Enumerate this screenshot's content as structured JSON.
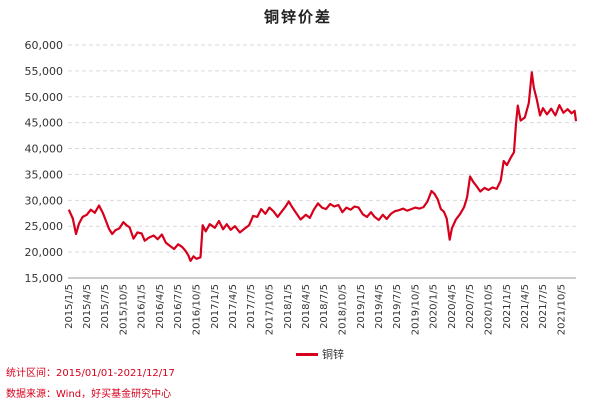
{
  "chart_data": {
    "type": "line",
    "title": "铜锌价差",
    "ylim": [
      15000,
      60000
    ],
    "y_ticks": [
      "15,000",
      "20,000",
      "25,000",
      "30,000",
      "35,000",
      "40,000",
      "45,000",
      "50,000",
      "55,000",
      "60,000"
    ],
    "x_range": [
      "2015-01-01",
      "2021-12-17"
    ],
    "x_ticks": [
      "2015/1/5",
      "2015/4/5",
      "2015/7/5",
      "2015/10/5",
      "2016/1/5",
      "2016/4/5",
      "2016/7/5",
      "2016/10/5",
      "2017/1/5",
      "2017/4/5",
      "2017/7/5",
      "2017/10/5",
      "2018/1/5",
      "2018/4/5",
      "2018/7/5",
      "2018/10/5",
      "2019/1/5",
      "2019/4/5",
      "2019/7/5",
      "2019/10/5",
      "2020/1/5",
      "2020/4/5",
      "2020/7/5",
      "2020/10/5",
      "2021/1/5",
      "2021/4/5",
      "2021/7/5",
      "2021/10/5"
    ],
    "grid": "horizontal dashed",
    "legend_position": "bottom",
    "color": "#d6001c",
    "series": [
      {
        "name": "铜锌",
        "points": [
          [
            "2015-01-05",
            28200
          ],
          [
            "2015-01-25",
            26500
          ],
          [
            "2015-02-10",
            23500
          ],
          [
            "2015-02-25",
            25500
          ],
          [
            "2015-03-15",
            26800
          ],
          [
            "2015-04-05",
            27200
          ],
          [
            "2015-04-25",
            28200
          ],
          [
            "2015-05-15",
            27600
          ],
          [
            "2015-06-05",
            29000
          ],
          [
            "2015-06-25",
            27500
          ],
          [
            "2015-07-10",
            26000
          ],
          [
            "2015-07-25",
            24500
          ],
          [
            "2015-08-10",
            23500
          ],
          [
            "2015-08-25",
            24200
          ],
          [
            "2015-09-15",
            24600
          ],
          [
            "2015-10-05",
            25800
          ],
          [
            "2015-10-20",
            25200
          ],
          [
            "2015-11-05",
            24800
          ],
          [
            "2015-11-25",
            22600
          ],
          [
            "2015-12-15",
            23800
          ],
          [
            "2016-01-05",
            23600
          ],
          [
            "2016-01-20",
            22200
          ],
          [
            "2016-02-10",
            22800
          ],
          [
            "2016-03-05",
            23200
          ],
          [
            "2016-03-25",
            22500
          ],
          [
            "2016-04-15",
            23400
          ],
          [
            "2016-05-05",
            21800
          ],
          [
            "2016-05-25",
            21200
          ],
          [
            "2016-06-15",
            20600
          ],
          [
            "2016-07-05",
            21500
          ],
          [
            "2016-07-25",
            21000
          ],
          [
            "2016-08-10",
            20300
          ],
          [
            "2016-08-25",
            19400
          ],
          [
            "2016-09-05",
            18300
          ],
          [
            "2016-09-20",
            19200
          ],
          [
            "2016-10-05",
            18700
          ],
          [
            "2016-10-25",
            19000
          ],
          [
            "2016-11-05",
            25200
          ],
          [
            "2016-11-20",
            24000
          ],
          [
            "2016-12-10",
            25400
          ],
          [
            "2017-01-05",
            24700
          ],
          [
            "2017-01-25",
            26000
          ],
          [
            "2017-02-15",
            24400
          ],
          [
            "2017-03-05",
            25400
          ],
          [
            "2017-03-25",
            24300
          ],
          [
            "2017-04-15",
            25000
          ],
          [
            "2017-05-10",
            23800
          ],
          [
            "2017-06-05",
            24600
          ],
          [
            "2017-06-25",
            25200
          ],
          [
            "2017-07-15",
            27000
          ],
          [
            "2017-08-05",
            26800
          ],
          [
            "2017-08-25",
            28300
          ],
          [
            "2017-09-15",
            27400
          ],
          [
            "2017-10-05",
            28600
          ],
          [
            "2017-10-25",
            27900
          ],
          [
            "2017-11-15",
            26800
          ],
          [
            "2017-12-05",
            27800
          ],
          [
            "2017-12-25",
            28800
          ],
          [
            "2018-01-10",
            29800
          ],
          [
            "2018-01-25",
            28800
          ],
          [
            "2018-02-15",
            27600
          ],
          [
            "2018-03-10",
            26300
          ],
          [
            "2018-04-05",
            27200
          ],
          [
            "2018-04-25",
            26600
          ],
          [
            "2018-05-15",
            28200
          ],
          [
            "2018-06-05",
            29400
          ],
          [
            "2018-06-25",
            28600
          ],
          [
            "2018-07-15",
            28300
          ],
          [
            "2018-08-05",
            29300
          ],
          [
            "2018-08-25",
            28800
          ],
          [
            "2018-09-15",
            29100
          ],
          [
            "2018-10-05",
            27700
          ],
          [
            "2018-10-25",
            28600
          ],
          [
            "2018-11-15",
            28200
          ],
          [
            "2018-12-05",
            28800
          ],
          [
            "2018-12-25",
            28600
          ],
          [
            "2019-01-15",
            27300
          ],
          [
            "2019-02-05",
            26800
          ],
          [
            "2019-02-25",
            27700
          ],
          [
            "2019-03-15",
            26800
          ],
          [
            "2019-04-05",
            26200
          ],
          [
            "2019-04-25",
            27200
          ],
          [
            "2019-05-15",
            26400
          ],
          [
            "2019-06-05",
            27400
          ],
          [
            "2019-06-25",
            27900
          ],
          [
            "2019-07-15",
            28100
          ],
          [
            "2019-08-05",
            28400
          ],
          [
            "2019-08-25",
            28000
          ],
          [
            "2019-09-15",
            28300
          ],
          [
            "2019-10-05",
            28600
          ],
          [
            "2019-10-25",
            28400
          ],
          [
            "2019-11-15",
            28700
          ],
          [
            "2019-12-05",
            29800
          ],
          [
            "2019-12-25",
            31800
          ],
          [
            "2020-01-10",
            31200
          ],
          [
            "2020-01-25",
            30200
          ],
          [
            "2020-02-10",
            28300
          ],
          [
            "2020-02-25",
            27800
          ],
          [
            "2020-03-10",
            26500
          ],
          [
            "2020-03-20",
            23800
          ],
          [
            "2020-03-25",
            22400
          ],
          [
            "2020-04-05",
            24600
          ],
          [
            "2020-04-25",
            26300
          ],
          [
            "2020-05-15",
            27300
          ],
          [
            "2020-06-05",
            28700
          ],
          [
            "2020-06-20",
            30600
          ],
          [
            "2020-07-05",
            34600
          ],
          [
            "2020-07-20",
            33600
          ],
          [
            "2020-08-05",
            32800
          ],
          [
            "2020-08-25",
            31700
          ],
          [
            "2020-09-15",
            32400
          ],
          [
            "2020-10-05",
            32000
          ],
          [
            "2020-10-25",
            32500
          ],
          [
            "2020-11-15",
            32200
          ],
          [
            "2020-12-05",
            33800
          ],
          [
            "2020-12-20",
            37600
          ],
          [
            "2021-01-05",
            36800
          ],
          [
            "2021-01-25",
            38300
          ],
          [
            "2021-02-10",
            39300
          ],
          [
            "2021-02-20",
            44800
          ],
          [
            "2021-03-01",
            48300
          ],
          [
            "2021-03-15",
            45400
          ],
          [
            "2021-04-05",
            46000
          ],
          [
            "2021-04-25",
            48800
          ],
          [
            "2021-05-10",
            54700
          ],
          [
            "2021-05-20",
            51800
          ],
          [
            "2021-06-05",
            49300
          ],
          [
            "2021-06-20",
            46400
          ],
          [
            "2021-07-05",
            47800
          ],
          [
            "2021-07-25",
            46600
          ],
          [
            "2021-08-15",
            47700
          ],
          [
            "2021-09-05",
            46400
          ],
          [
            "2021-09-25",
            48400
          ],
          [
            "2021-10-15",
            46900
          ],
          [
            "2021-11-05",
            47600
          ],
          [
            "2021-11-25",
            46800
          ],
          [
            "2021-12-10",
            47300
          ],
          [
            "2021-12-17",
            45300
          ]
        ]
      }
    ],
    "notes": [
      "统计区间：2015/01/01-2021/12/17",
      "数据来源：Wind，好买基金研究中心"
    ]
  }
}
